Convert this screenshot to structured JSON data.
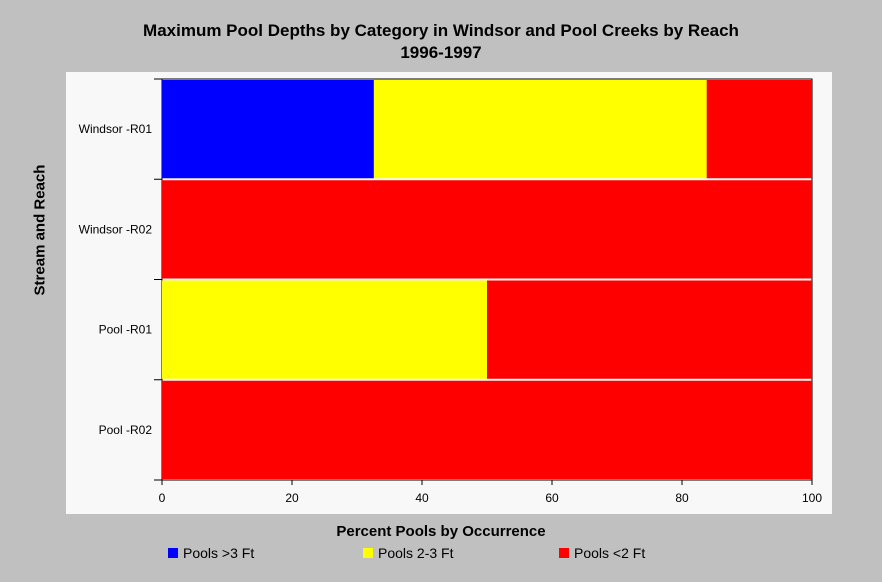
{
  "chart_data": {
    "type": "bar",
    "orientation": "horizontal",
    "stacked": true,
    "title": "Maximum Pool Depths by Category in Windsor and Pool Creeks by Reach",
    "subtitle": "1996-1997",
    "xlabel": "Percent Pools by Occurrence",
    "ylabel": "Stream and Reach",
    "xlim": [
      0,
      100
    ],
    "xticks": [
      0,
      20,
      40,
      60,
      80,
      100
    ],
    "grid": false,
    "legend_position": "bottom",
    "categories": [
      "Windsor -R01",
      "Windsor -R02",
      "Pool -R01",
      "Pool -R02"
    ],
    "series": [
      {
        "name": "Pools >3 Ft",
        "color": "#0000ff",
        "values": [
          32.6,
          0,
          0,
          0
        ]
      },
      {
        "name": "Pools 2-3 Ft",
        "color": "#ffff00",
        "values": [
          51.2,
          0,
          50,
          0
        ]
      },
      {
        "name": "Pools <2 Ft",
        "color": "#ff0000",
        "values": [
          16.2,
          100,
          50,
          100
        ]
      }
    ]
  }
}
